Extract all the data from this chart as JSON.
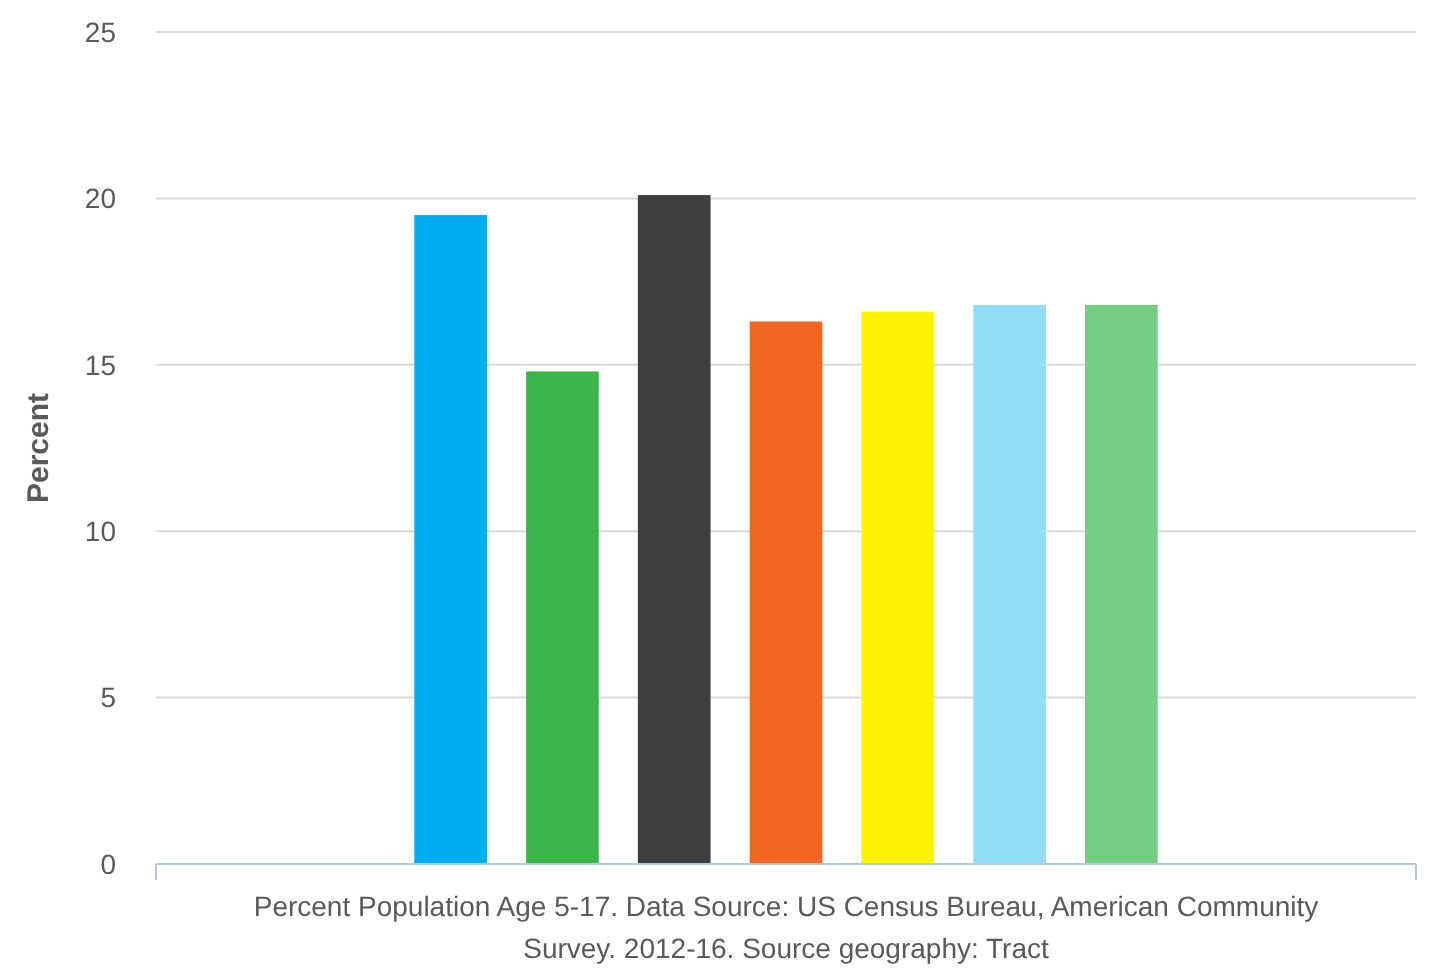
{
  "chart_data": {
    "type": "bar",
    "ylabel": "Percent",
    "categories": [
      "Percent Population Age 5-17. Data Source: US Census Bureau, American Community Survey. 2012-16. Source geography: Tract"
    ],
    "series": [
      {
        "color": "#00aeef",
        "values": [
          19.5
        ]
      },
      {
        "color": "#3ab54a",
        "values": [
          14.8
        ]
      },
      {
        "color": "#3d3d3d",
        "values": [
          20.1
        ]
      },
      {
        "color": "#f26522",
        "values": [
          16.3
        ]
      },
      {
        "color": "#fff200",
        "values": [
          16.6
        ]
      },
      {
        "color": "#92dcf8",
        "values": [
          16.8
        ]
      },
      {
        "color": "#77cc84",
        "values": [
          16.8
        ]
      }
    ],
    "ylim": [
      0,
      25
    ],
    "yticks": [
      0,
      5,
      10,
      15,
      20,
      25
    ],
    "grid": "y"
  }
}
